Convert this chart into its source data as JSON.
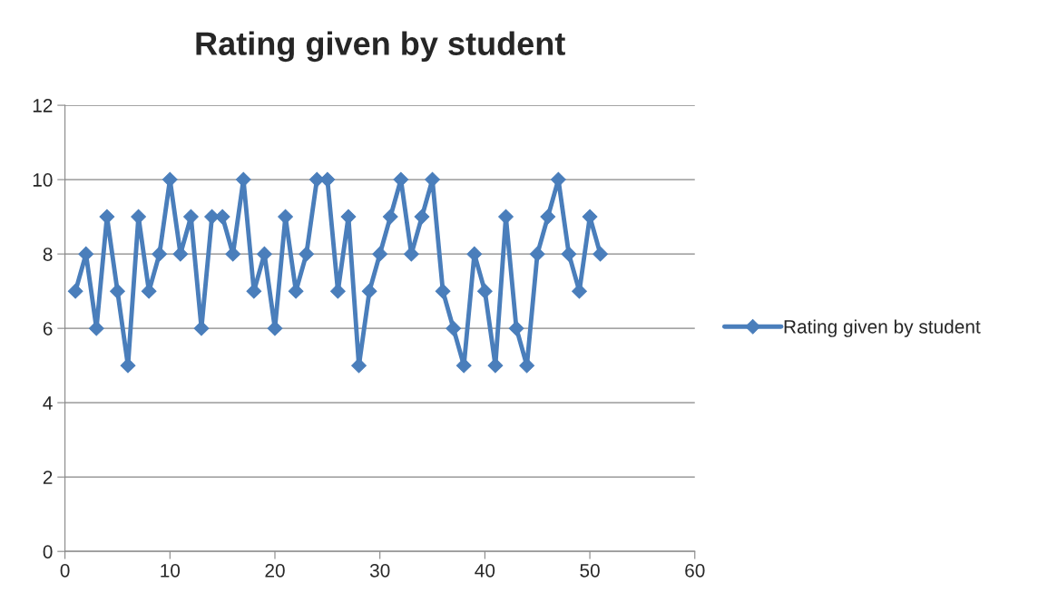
{
  "chart_data": {
    "type": "line",
    "title": "Rating given by student",
    "x": [
      1,
      2,
      3,
      4,
      5,
      6,
      7,
      8,
      9,
      10,
      11,
      12,
      13,
      14,
      15,
      16,
      17,
      18,
      19,
      20,
      21,
      22,
      23,
      24,
      25,
      26,
      27,
      28,
      29,
      30,
      31,
      32,
      33,
      34,
      35,
      36,
      37,
      38,
      39,
      40,
      41,
      42,
      43,
      44,
      45,
      46,
      47,
      48,
      49,
      50,
      51
    ],
    "series": [
      {
        "name": "Rating given by student",
        "color": "#4a7ebb",
        "values": [
          7,
          8,
          6,
          9,
          7,
          5,
          9,
          7,
          8,
          10,
          8,
          9,
          6,
          9,
          9,
          8,
          10,
          7,
          8,
          6,
          9,
          7,
          8,
          10,
          10,
          7,
          9,
          5,
          7,
          8,
          9,
          10,
          8,
          9,
          10,
          7,
          6,
          5,
          8,
          7,
          5,
          9,
          6,
          5,
          8,
          9,
          10,
          8,
          7,
          9,
          8
        ]
      }
    ],
    "xlim": [
      0,
      60
    ],
    "xticks": [
      0,
      10,
      20,
      30,
      40,
      50,
      60
    ],
    "ylim": [
      0,
      12
    ],
    "yticks": [
      0,
      2,
      4,
      6,
      8,
      10,
      12
    ],
    "grid": "y",
    "legend": "right",
    "marker": "diamond",
    "line_style": "solid"
  }
}
